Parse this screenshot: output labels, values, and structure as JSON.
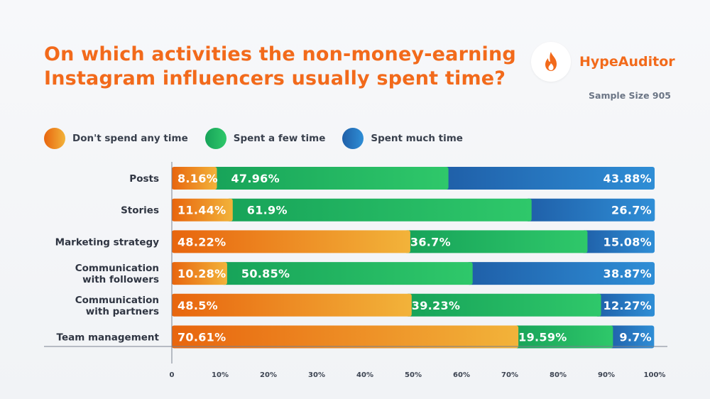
{
  "header": {
    "title_lines": [
      "On which activities the non-money-earning",
      "Instagram influencers usually spent time?"
    ],
    "brand_name": "HypeAuditor",
    "brand_icon": "flame-icon",
    "sample_size": "Sample Size 905"
  },
  "colors": {
    "orange_start": "#e8650e",
    "orange_end": "#f2b33a",
    "green_start": "#17a359",
    "green_end": "#2fc86a",
    "blue_start": "#1f5fa8",
    "blue_end": "#2f8ed6",
    "title": "#f26a1b"
  },
  "chart_data": {
    "type": "bar",
    "orientation": "horizontal",
    "stacked": true,
    "categories": [
      [
        "Posts"
      ],
      [
        "Stories"
      ],
      [
        "Marketing strategy"
      ],
      [
        "Communication",
        "with followers"
      ],
      [
        "Communication",
        "with partners"
      ],
      [
        "Team management"
      ]
    ],
    "series": [
      {
        "name": "Don't spend any time",
        "values": [
          8.16,
          11.44,
          48.22,
          10.28,
          48.5,
          70.61
        ],
        "labels": [
          "8.16%",
          "11.44%",
          "48.22%",
          "10.28%",
          "48.5%",
          "70.61%"
        ]
      },
      {
        "name": "Spent a few time",
        "values": [
          47.96,
          61.9,
          36.7,
          50.85,
          39.23,
          19.59
        ],
        "labels": [
          "47.96%",
          "61.9%",
          "36.7%",
          "50.85%",
          "39.23%",
          "19.59%"
        ]
      },
      {
        "name": "Spent much time",
        "values": [
          43.88,
          26.7,
          15.08,
          38.87,
          12.27,
          9.7
        ],
        "labels": [
          "43.88%",
          "26.7%",
          "15.08%",
          "38.87%",
          "12.27%",
          "9.7%"
        ]
      }
    ],
    "xlim": [
      0,
      100
    ],
    "xticks": [
      "0",
      "10%",
      "20%",
      "30%",
      "40%",
      "50%",
      "60%",
      "70%",
      "80%",
      "90%",
      "100%"
    ],
    "legend": "top-left",
    "grid": false
  }
}
